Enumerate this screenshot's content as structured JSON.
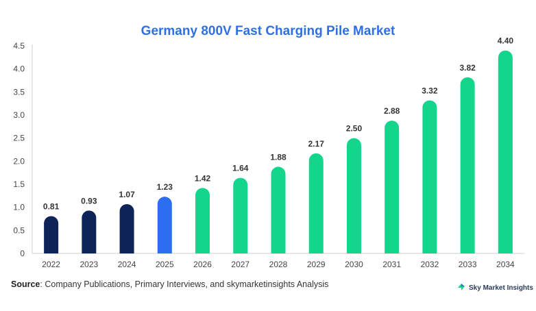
{
  "chart_data": {
    "type": "bar",
    "title": "Germany 800V Fast Charging Pile Market",
    "categories": [
      "2022",
      "2023",
      "2024",
      "2025",
      "2026",
      "2027",
      "2028",
      "2029",
      "2030",
      "2031",
      "2032",
      "2033",
      "2034"
    ],
    "values": [
      0.81,
      0.93,
      1.07,
      1.23,
      1.42,
      1.64,
      1.88,
      2.17,
      2.5,
      2.88,
      3.32,
      3.82,
      4.4
    ],
    "value_labels": [
      "0.81",
      "0.93",
      "1.07",
      "1.23",
      "1.42",
      "1.64",
      "1.88",
      "2.17",
      "2.50",
      "2.88",
      "3.32",
      "3.82",
      "4.40"
    ],
    "y_ticks": [
      "0",
      "0.5",
      "1.0",
      "1.5",
      "2.0",
      "2.5",
      "3.0",
      "3.5",
      "4.0",
      "4.5"
    ],
    "ylim": [
      0,
      4.5
    ],
    "xlabel": "",
    "ylabel": "",
    "grid": false,
    "bar_colors": [
      "#0e2459",
      "#0e2459",
      "#0e2459",
      "#2d6ef0",
      "#13d58c",
      "#13d58c",
      "#13d58c",
      "#13d58c",
      "#13d58c",
      "#13d58c",
      "#13d58c",
      "#13d58c",
      "#13d58c"
    ]
  },
  "footer": {
    "source_label": "Source",
    "source_text": ": Company Publications, Primary Interviews, and skymarketinsights Analysis",
    "brand": "Sky Market Insights",
    "brand_icon": "sky-market-insights-logo-icon"
  }
}
